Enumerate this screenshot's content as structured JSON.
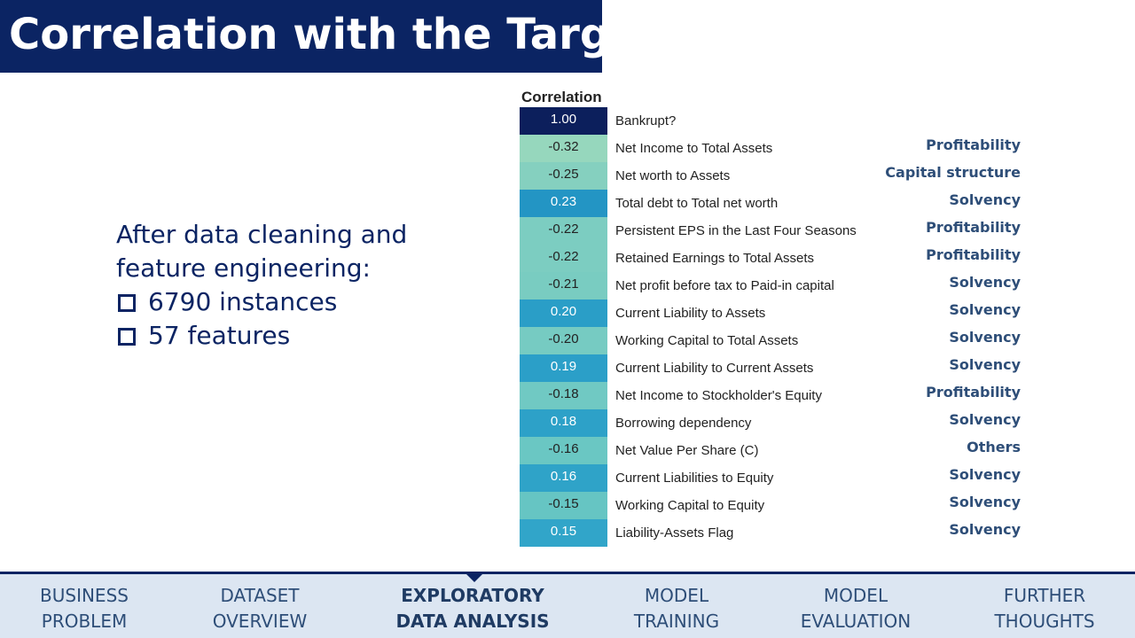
{
  "header": {
    "title": "Correlation with the Target"
  },
  "bullets": {
    "intro": "After data cleaning and feature engineering:",
    "items": [
      "6790 instances",
      "57 features"
    ]
  },
  "heatmap": {
    "title": "Correlation",
    "rows": [
      {
        "value": "1.00",
        "label": "Bankrupt?",
        "category": null,
        "color": "#0c1f5c"
      },
      {
        "value": "-0.32",
        "label": "Net Income to Total Assets",
        "category": "Profitability",
        "color": "#96d7bd"
      },
      {
        "value": "-0.25",
        "label": "Net worth to Assets",
        "category": "Capital structure",
        "color": "#85d0bf"
      },
      {
        "value": "0.23",
        "label": "Total debt to Total net worth",
        "category": "Solvency",
        "color": "#2395c4"
      },
      {
        "value": "-0.22",
        "label": "Persistent EPS in the Last Four Seasons",
        "category": "Profitability",
        "color": "#7ccdc1"
      },
      {
        "value": "-0.22",
        "label": "Retained Earnings to Total Assets",
        "category": "Profitability",
        "color": "#7ccdc1"
      },
      {
        "value": "-0.21",
        "label": "Net profit before tax to Paid-in capital",
        "category": "Solvency",
        "color": "#79ccc1"
      },
      {
        "value": "0.20",
        "label": "Current Liability to Assets",
        "category": "Solvency",
        "color": "#2a9ec7"
      },
      {
        "value": "-0.20",
        "label": "Working Capital to Total Assets",
        "category": "Solvency",
        "color": "#76cbc2"
      },
      {
        "value": "0.19",
        "label": "Current Liability to Current Assets",
        "category": "Solvency",
        "color": "#2b9fc8"
      },
      {
        "value": "-0.18",
        "label": "Net Income to Stockholder's Equity",
        "category": "Profitability",
        "color": "#70c9c3"
      },
      {
        "value": "0.18",
        "label": "Borrowing dependency",
        "category": "Solvency",
        "color": "#2da1c8"
      },
      {
        "value": "-0.16",
        "label": "Net Value Per Share (C)",
        "category": "Others",
        "color": "#6ac7c3"
      },
      {
        "value": "0.16",
        "label": "Current Liabilities to Equity",
        "category": "Solvency",
        "color": "#2fa3c8"
      },
      {
        "value": "-0.15",
        "label": "Working Capital to Equity",
        "category": "Solvency",
        "color": "#66c5c3"
      },
      {
        "value": "0.15",
        "label": "Liability-Assets Flag",
        "category": "Solvency",
        "color": "#31a5c9"
      }
    ]
  },
  "nav": {
    "items": [
      [
        "BUSINESS",
        "PROBLEM"
      ],
      [
        "DATASET",
        "OVERVIEW"
      ],
      [
        "EXPLORATORY",
        "DATA ANALYSIS"
      ],
      [
        "MODEL",
        "TRAINING"
      ],
      [
        "MODEL",
        "EVALUATION"
      ],
      [
        "FURTHER",
        "THOUGHTS"
      ]
    ]
  }
}
